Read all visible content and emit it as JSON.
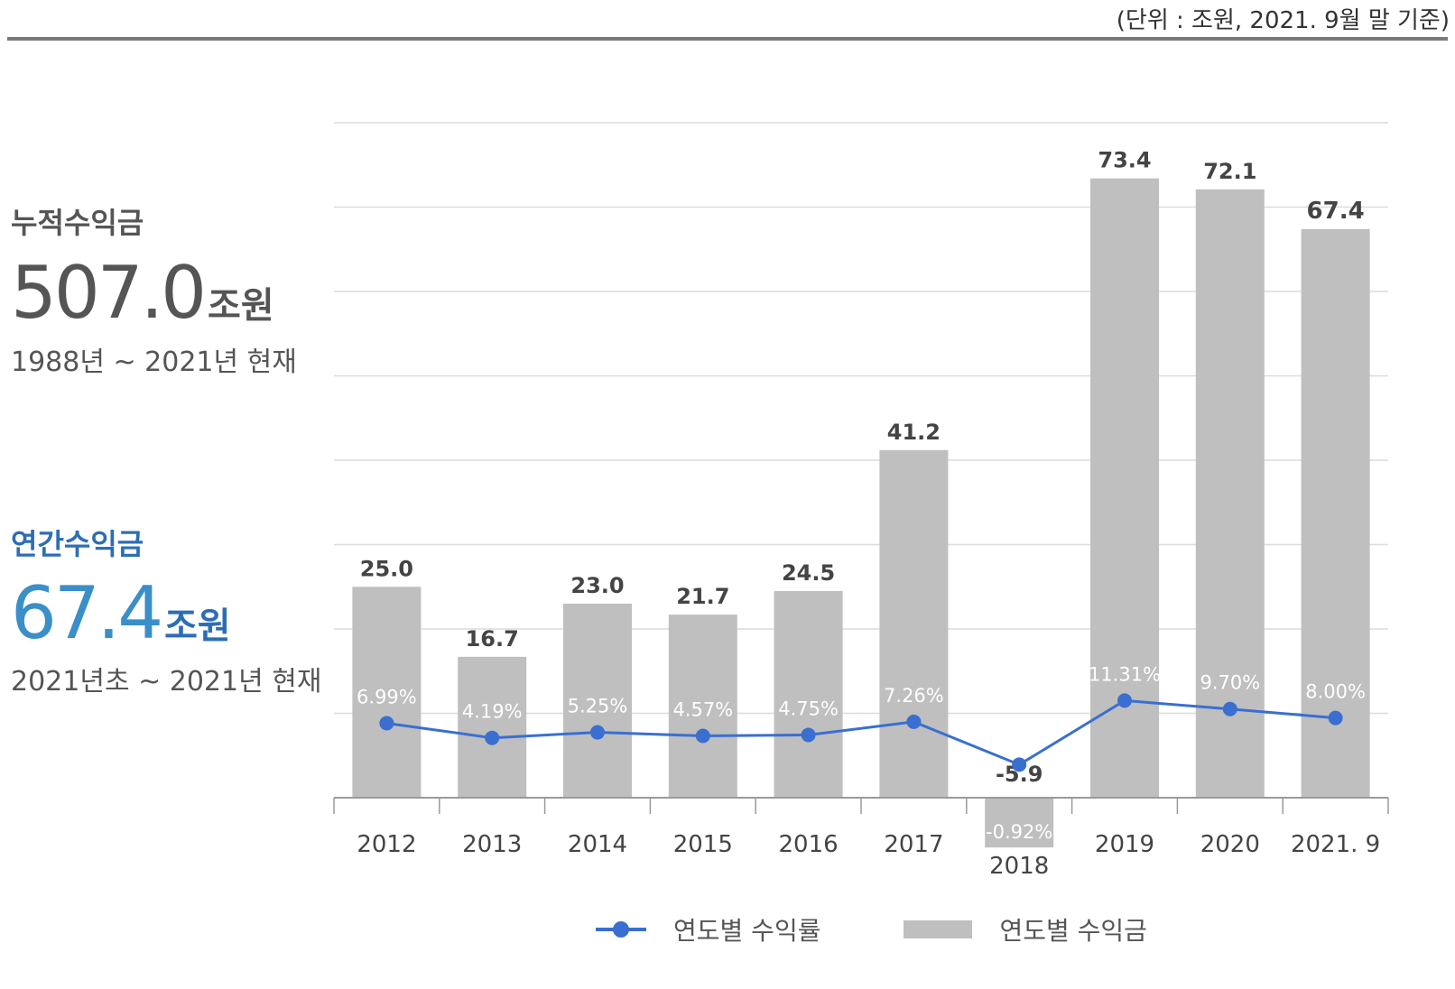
{
  "header": {
    "unit_note": "(단위 : 조원, 2021. 9월 말 기준)"
  },
  "summary": {
    "cumulative": {
      "label": "누적수익금",
      "value": "507.0",
      "unit": "조원",
      "range": "1988년 ~ 2021년 현재"
    },
    "annual": {
      "label": "연간수익금",
      "value": "67.4",
      "unit": "조원",
      "range": "2021년초 ~ 2021년 현재"
    }
  },
  "chart_data": {
    "type": "bar",
    "categories": [
      "2012",
      "2013",
      "2014",
      "2015",
      "2016",
      "2017",
      "2018",
      "2019",
      "2020",
      "2021. 9"
    ],
    "series": [
      {
        "name": "연도별 수익금",
        "kind": "bar",
        "color": "#bfbfbf",
        "values": [
          25.0,
          16.7,
          23.0,
          21.7,
          24.5,
          41.2,
          -5.9,
          73.4,
          72.1,
          67.4
        ],
        "labels": [
          "25.0",
          "16.7",
          "23.0",
          "21.7",
          "24.5",
          "41.2",
          "-5.9",
          "73.4",
          "72.1",
          "67.4"
        ]
      },
      {
        "name": "연도별 수익률",
        "kind": "line",
        "color": "#3a6fd0",
        "values": [
          6.99,
          4.19,
          5.25,
          4.57,
          4.75,
          7.26,
          -0.92,
          11.31,
          9.7,
          8.0
        ],
        "labels": [
          "6.99%",
          "4.19%",
          "5.25%",
          "4.57%",
          "4.75%",
          "7.26%",
          "-0.92%",
          "11.31%",
          "9.70%",
          "8.00%"
        ]
      }
    ],
    "grid": true,
    "legend": "bottom"
  }
}
